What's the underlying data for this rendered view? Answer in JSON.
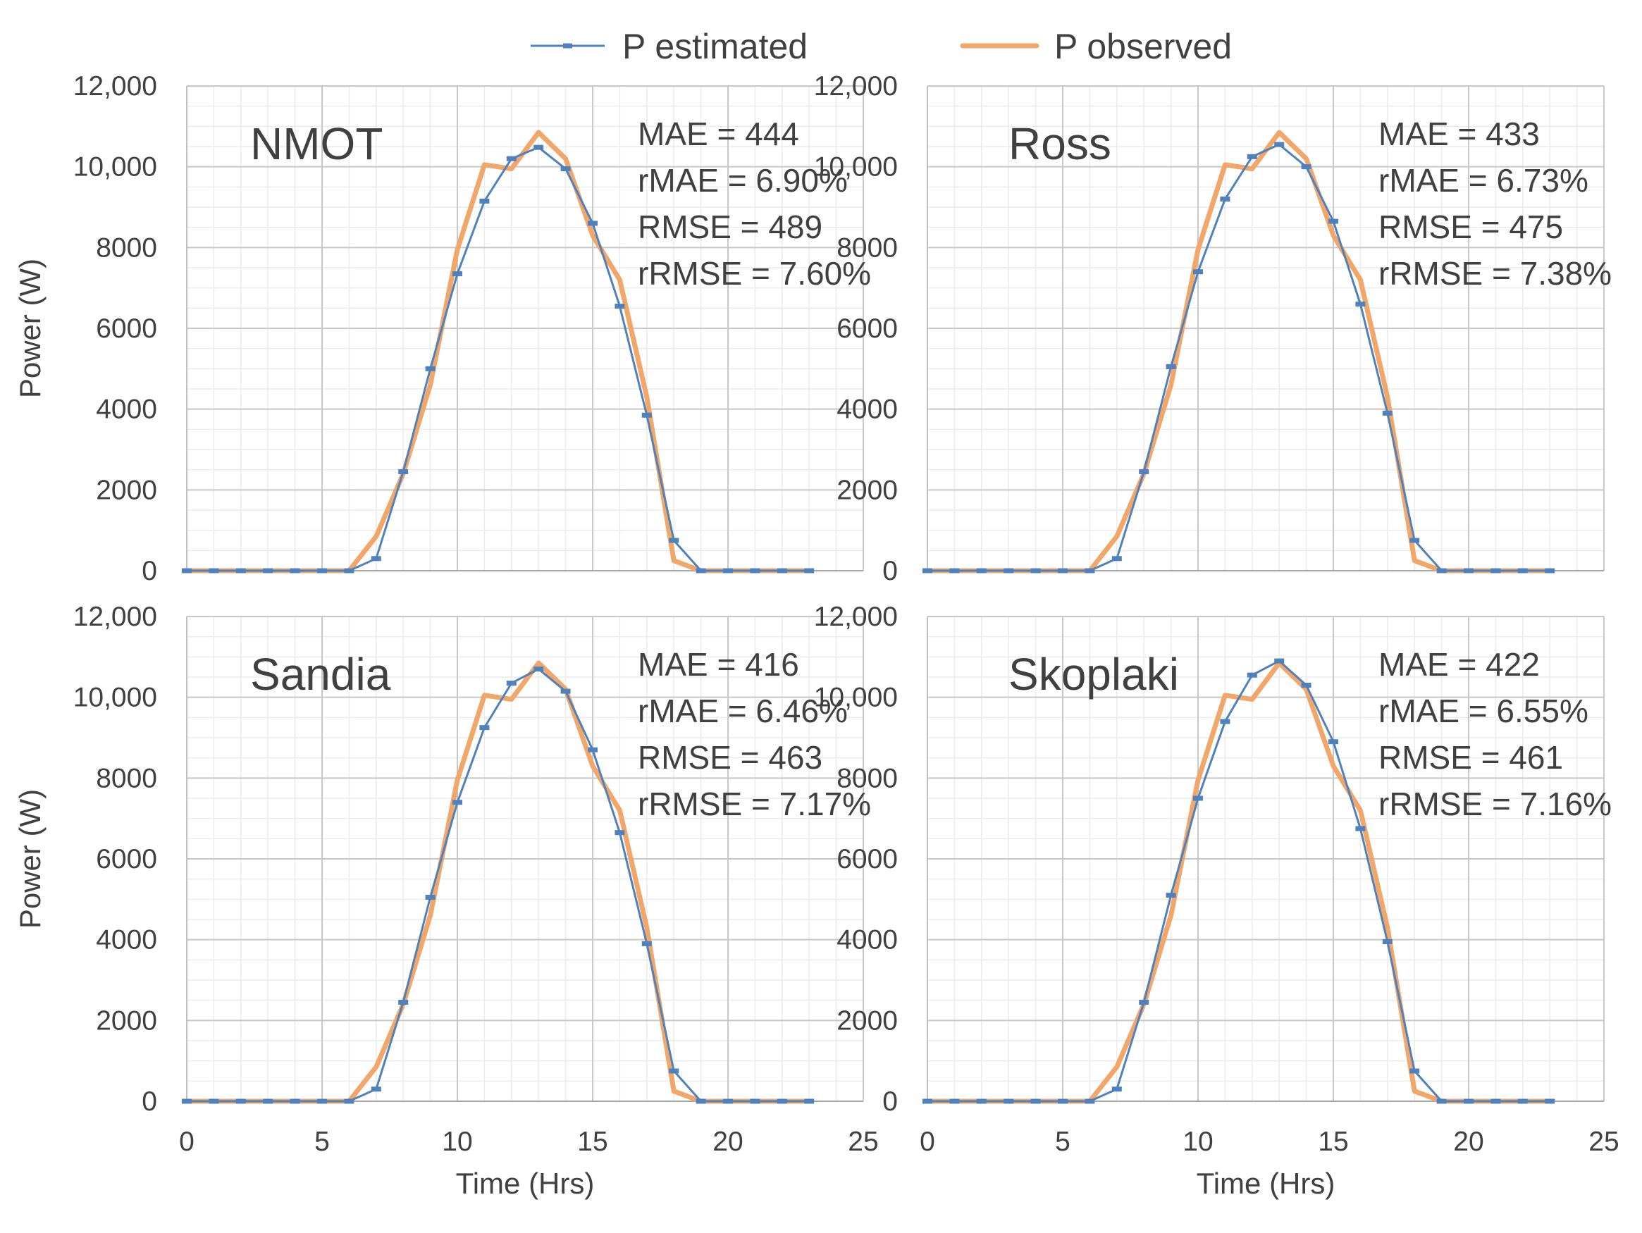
{
  "colors": {
    "estimated": "#4f81bd",
    "observed": "#f2a76a",
    "grid_major": "#c8c8c8",
    "grid_minor": "#ececec",
    "text": "#404040"
  },
  "chart_data": {
    "type": "line",
    "legend": [
      {
        "key": "estimated",
        "label": "P estimated"
      },
      {
        "key": "observed",
        "label": "P observed"
      }
    ],
    "xlabel": "Time (Hrs)",
    "ylabel": "Power (W)",
    "xlim": [
      0,
      25
    ],
    "ylim": [
      0,
      12000
    ],
    "x_ticks": [
      {
        "v": 0,
        "label": "0"
      },
      {
        "v": 5,
        "label": "5"
      },
      {
        "v": 10,
        "label": "10"
      },
      {
        "v": 15,
        "label": "15"
      },
      {
        "v": 20,
        "label": "20"
      },
      {
        "v": 25,
        "label": "25"
      }
    ],
    "y_ticks": [
      {
        "v": 0,
        "label": "0"
      },
      {
        "v": 2000,
        "label": "2000"
      },
      {
        "v": 4000,
        "label": "4000"
      },
      {
        "v": 6000,
        "label": "6000"
      },
      {
        "v": 8000,
        "label": "8000"
      },
      {
        "v": 10000,
        "label": "10,000"
      },
      {
        "v": 12000,
        "label": "12,000"
      }
    ],
    "x": [
      0,
      1,
      2,
      3,
      4,
      5,
      6,
      7,
      8,
      9,
      10,
      11,
      12,
      13,
      14,
      15,
      16,
      17,
      18,
      19,
      20,
      21,
      22,
      23
    ],
    "panels": [
      {
        "title": "NMOT",
        "stats": [
          "MAE = 444",
          "rMAE = 6.90%",
          "RMSE = 489",
          "rRMSE = 7.60%"
        ],
        "series": [
          {
            "key": "estimated",
            "name": "P estimated",
            "values": [
              0,
              0,
              0,
              0,
              0,
              0,
              0,
              300,
              2450,
              5000,
              7350,
              9150,
              10200,
              10480,
              9950,
              8600,
              6550,
              3850,
              750,
              0,
              0,
              0,
              0,
              0
            ]
          },
          {
            "key": "observed",
            "name": "P observed",
            "values": [
              0,
              0,
              0,
              0,
              0,
              0,
              0,
              850,
              2400,
              4600,
              7950,
              10050,
              9950,
              10850,
              10200,
              8300,
              7200,
              4300,
              250,
              0,
              0,
              0,
              0,
              0
            ]
          }
        ]
      },
      {
        "title": "Ross",
        "stats": [
          "MAE = 433",
          "rMAE = 6.73%",
          "RMSE = 475",
          "rRMSE = 7.38%"
        ],
        "series": [
          {
            "key": "estimated",
            "name": "P estimated",
            "values": [
              0,
              0,
              0,
              0,
              0,
              0,
              0,
              300,
              2450,
              5050,
              7400,
              9200,
              10250,
              10550,
              10000,
              8650,
              6600,
              3900,
              750,
              0,
              0,
              0,
              0,
              0
            ]
          },
          {
            "key": "observed",
            "name": "P observed",
            "values": [
              0,
              0,
              0,
              0,
              0,
              0,
              0,
              850,
              2400,
              4600,
              7950,
              10050,
              9950,
              10850,
              10200,
              8300,
              7200,
              4300,
              250,
              0,
              0,
              0,
              0,
              0
            ]
          }
        ]
      },
      {
        "title": "Sandia",
        "stats": [
          "MAE = 416",
          "rMAE = 6.46%",
          "RMSE = 463",
          "rRMSE = 7.17%"
        ],
        "series": [
          {
            "key": "estimated",
            "name": "P estimated",
            "values": [
              0,
              0,
              0,
              0,
              0,
              0,
              0,
              300,
              2450,
              5050,
              7400,
              9250,
              10350,
              10700,
              10150,
              8700,
              6650,
              3900,
              750,
              0,
              0,
              0,
              0,
              0
            ]
          },
          {
            "key": "observed",
            "name": "P observed",
            "values": [
              0,
              0,
              0,
              0,
              0,
              0,
              0,
              850,
              2400,
              4600,
              7950,
              10050,
              9950,
              10850,
              10200,
              8300,
              7200,
              4300,
              250,
              0,
              0,
              0,
              0,
              0
            ]
          }
        ]
      },
      {
        "title": "Skoplaki",
        "stats": [
          "MAE = 422",
          "rMAE = 6.55%",
          "RMSE = 461",
          "rRMSE = 7.16%"
        ],
        "series": [
          {
            "key": "estimated",
            "name": "P estimated",
            "values": [
              0,
              0,
              0,
              0,
              0,
              0,
              0,
              300,
              2450,
              5100,
              7500,
              9400,
              10550,
              10900,
              10300,
              8900,
              6750,
              3950,
              750,
              0,
              0,
              0,
              0,
              0
            ]
          },
          {
            "key": "observed",
            "name": "P observed",
            "values": [
              0,
              0,
              0,
              0,
              0,
              0,
              0,
              850,
              2400,
              4600,
              7950,
              10050,
              9950,
              10850,
              10200,
              8300,
              7200,
              4300,
              250,
              0,
              0,
              0,
              0,
              0
            ]
          }
        ]
      }
    ]
  }
}
